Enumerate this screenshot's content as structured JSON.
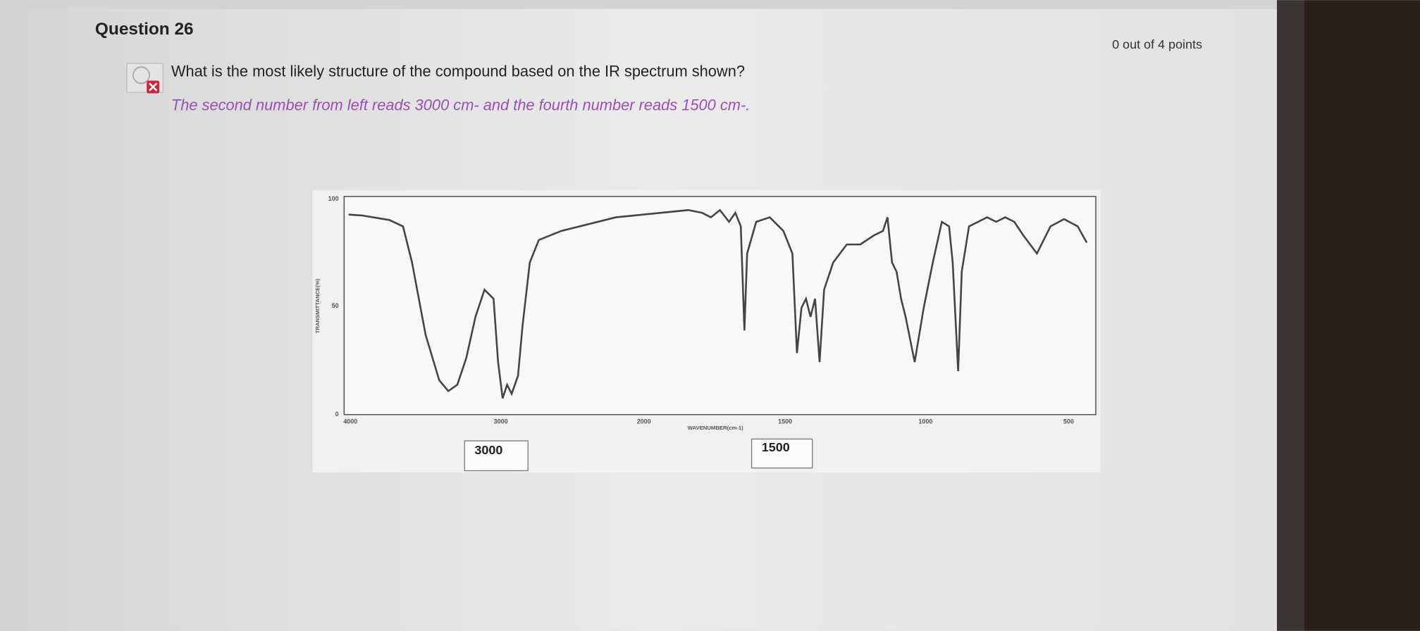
{
  "header": {
    "title": "Question 26",
    "score": "0 out of 4 points"
  },
  "question": {
    "text": "What is the most likely structure of the compound based on the IR spectrum shown?",
    "note": "The second number from left reads 3000 cm- and the fourth number reads 1500 cm-."
  },
  "spectrum": {
    "x_ticks": [
      "4000",
      "3000",
      "2000",
      "1500",
      "1000",
      "500"
    ],
    "y_ticks": [
      "100",
      "50",
      "0"
    ],
    "x_axis_label": "WAVENUMBER(cm-1)",
    "y_axis_label": "TRANSMITTANCE(%)"
  },
  "answers": [
    "3000",
    "1500"
  ]
}
